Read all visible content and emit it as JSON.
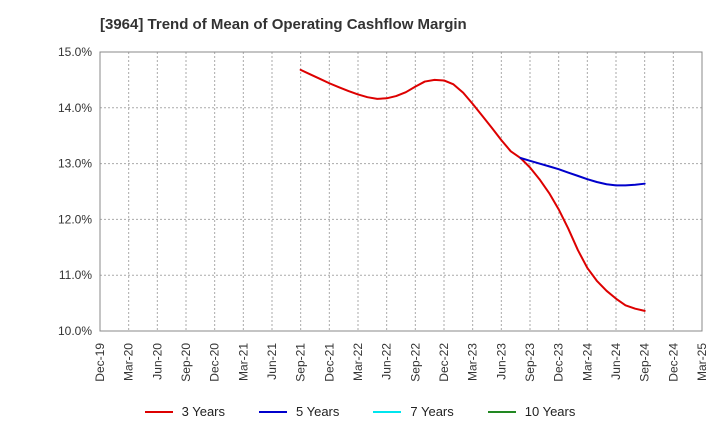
{
  "title": "[3964]  Trend of Mean of Operating Cashflow Margin",
  "chart_data": {
    "type": "line",
    "title": "[3964]  Trend of Mean of Operating Cashflow Margin",
    "xlabel": "",
    "ylabel": "",
    "ylim": [
      10.0,
      15.0
    ],
    "y_ticks": [
      "10.0%",
      "11.0%",
      "12.0%",
      "13.0%",
      "14.0%",
      "15.0%"
    ],
    "x_ticks": [
      "Dec-19",
      "Mar-20",
      "Jun-20",
      "Sep-20",
      "Dec-20",
      "Mar-21",
      "Jun-21",
      "Sep-21",
      "Dec-21",
      "Mar-22",
      "Jun-22",
      "Sep-22",
      "Dec-22",
      "Mar-23",
      "Jun-23",
      "Sep-23",
      "Dec-23",
      "Mar-24",
      "Jun-24",
      "Sep-24",
      "Dec-24",
      "Mar-25"
    ],
    "grid": true,
    "legend_position": "bottom",
    "series": [
      {
        "name": "3 Years",
        "color": "#dd0000",
        "x": [
          7.0,
          7.33,
          7.67,
          8.0,
          8.33,
          8.67,
          9.0,
          9.33,
          9.67,
          10.0,
          10.33,
          10.67,
          11.0,
          11.33,
          11.67,
          12.0,
          12.33,
          12.67,
          13.0,
          13.33,
          13.67,
          14.0,
          14.33,
          14.67,
          15.0,
          15.33,
          15.67,
          16.0,
          16.33,
          16.67,
          17.0,
          17.33,
          17.67,
          18.0,
          18.33,
          18.67,
          19.0
        ],
        "values": [
          14.68,
          14.6,
          14.52,
          14.44,
          14.37,
          14.3,
          14.24,
          14.19,
          14.16,
          14.17,
          14.21,
          14.28,
          14.38,
          14.47,
          14.5,
          14.49,
          14.42,
          14.27,
          14.07,
          13.86,
          13.64,
          13.42,
          13.22,
          13.1,
          12.93,
          12.72,
          12.47,
          12.18,
          11.84,
          11.45,
          11.13,
          10.9,
          10.72,
          10.58,
          10.46,
          10.4,
          10.36
        ]
      },
      {
        "name": "5 Years",
        "color": "#0000cc",
        "x": [
          14.67,
          15.0,
          15.33,
          15.67,
          16.0,
          16.33,
          16.67,
          17.0,
          17.33,
          17.67,
          18.0,
          18.33,
          18.67,
          19.0
        ],
        "values": [
          13.1,
          13.05,
          13.0,
          12.95,
          12.9,
          12.84,
          12.78,
          12.72,
          12.67,
          12.63,
          12.61,
          12.61,
          12.62,
          12.64
        ]
      },
      {
        "name": "7 Years",
        "color": "#00e5ee",
        "x": [],
        "values": []
      },
      {
        "name": "10 Years",
        "color": "#228822",
        "x": [],
        "values": []
      }
    ]
  }
}
